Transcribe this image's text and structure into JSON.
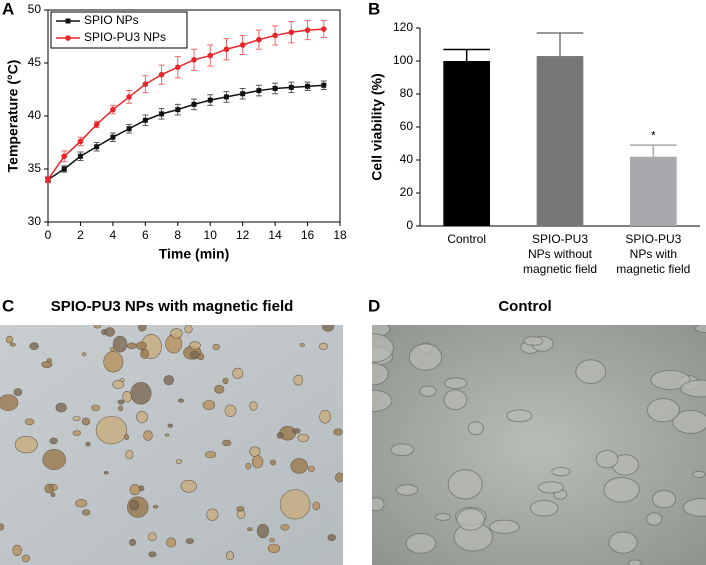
{
  "chart_data": [
    {
      "type": "line",
      "panel_label": "A",
      "xlabel": "Time (min)",
      "ylabel": "Temperature (°C)",
      "x": [
        0,
        1,
        2,
        3,
        4,
        5,
        6,
        7,
        8,
        9,
        10,
        11,
        12,
        13,
        14,
        15,
        16,
        17
      ],
      "series": [
        {
          "name": "SPIO NPs",
          "color": "#111111",
          "marker": "square",
          "values": [
            34,
            35,
            36.2,
            37.1,
            38,
            38.8,
            39.6,
            40.2,
            40.6,
            41.1,
            41.5,
            41.8,
            42.1,
            42.4,
            42.6,
            42.7,
            42.8,
            42.9
          ],
          "errors": [
            0.2,
            0.3,
            0.4,
            0.4,
            0.4,
            0.4,
            0.5,
            0.5,
            0.5,
            0.5,
            0.5,
            0.5,
            0.5,
            0.5,
            0.5,
            0.5,
            0.4,
            0.4
          ]
        },
        {
          "name": "SPIO-PU3 NPs",
          "color": "#e8262a",
          "marker": "circle",
          "values": [
            34,
            36.2,
            37.6,
            39.2,
            40.6,
            41.8,
            43,
            43.9,
            44.6,
            45.3,
            45.7,
            46.3,
            46.7,
            47.2,
            47.6,
            47.9,
            48.1,
            48.2
          ],
          "errors": [
            0.3,
            0.5,
            0.4,
            0.3,
            0.4,
            0.6,
            0.8,
            0.9,
            1,
            1,
            1,
            1,
            0.9,
            0.9,
            0.9,
            1,
            0.9,
            0.8
          ]
        }
      ],
      "xlim": [
        0,
        18
      ],
      "xticks": [
        0,
        2,
        4,
        6,
        8,
        10,
        12,
        14,
        16,
        18
      ],
      "ylim": [
        30,
        50
      ],
      "yticks": [
        30,
        35,
        40,
        45,
        50
      ],
      "legend": "upper left"
    },
    {
      "type": "bar",
      "panel_label": "B",
      "ylabel": "Cell viability (%)",
      "categories": [
        [
          "Control"
        ],
        [
          "SPIO-PU3",
          "NPs without",
          "magnetic field"
        ],
        [
          "SPIO-PU3",
          "NPs with",
          "magnetic field"
        ]
      ],
      "values": [
        100,
        103,
        42
      ],
      "errors": [
        7,
        14,
        7
      ],
      "colors": [
        "#000000",
        "#777777",
        "#a9a9ad"
      ],
      "annotations": [
        null,
        null,
        "*"
      ],
      "ylim": [
        0,
        120
      ],
      "yticks": [
        0,
        20,
        40,
        60,
        80,
        100,
        120
      ]
    }
  ],
  "micrographs": [
    {
      "panel_label": "C",
      "title": "SPIO-PU3 NPs with magnetic field"
    },
    {
      "panel_label": "D",
      "title": "Control"
    }
  ]
}
